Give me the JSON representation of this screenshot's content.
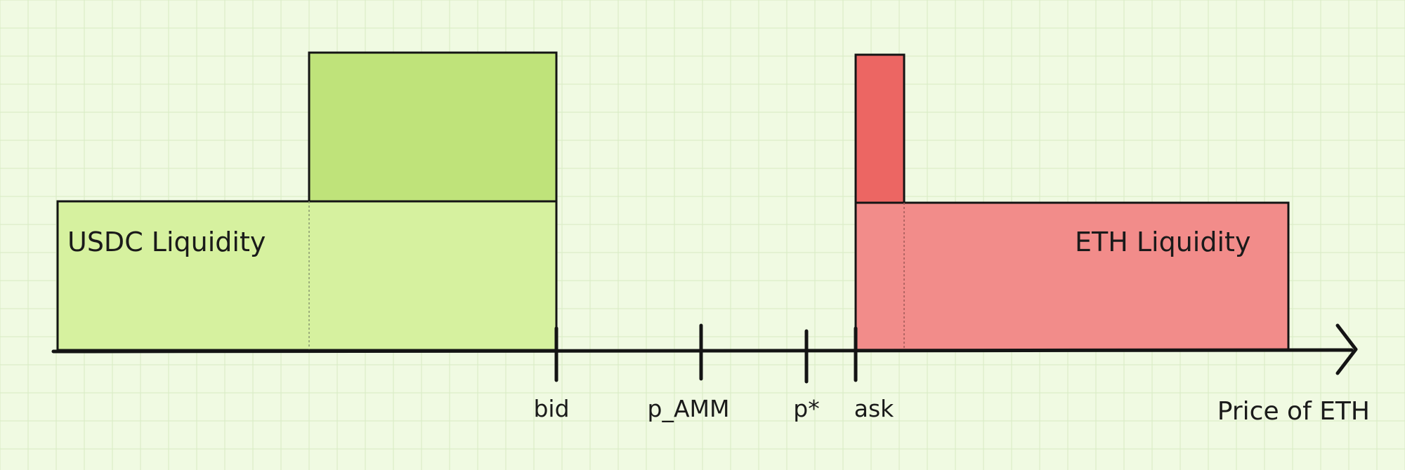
{
  "labels": {
    "usdc": "USDC Liquidity",
    "eth": "ETH Liquidity",
    "axis": "Price of ETH"
  },
  "ticks": {
    "bid": "bid",
    "p_amm": "p_AMM",
    "p_star": "p*",
    "ask": "ask"
  },
  "colors": {
    "background": "#f0fae2",
    "grid": "#d7ebc3",
    "usdc_base": "#d6f19f",
    "usdc_top": "#bfe37a",
    "eth_base": "#f28c8a",
    "eth_top": "#ec6663",
    "ink": "#141414"
  }
}
